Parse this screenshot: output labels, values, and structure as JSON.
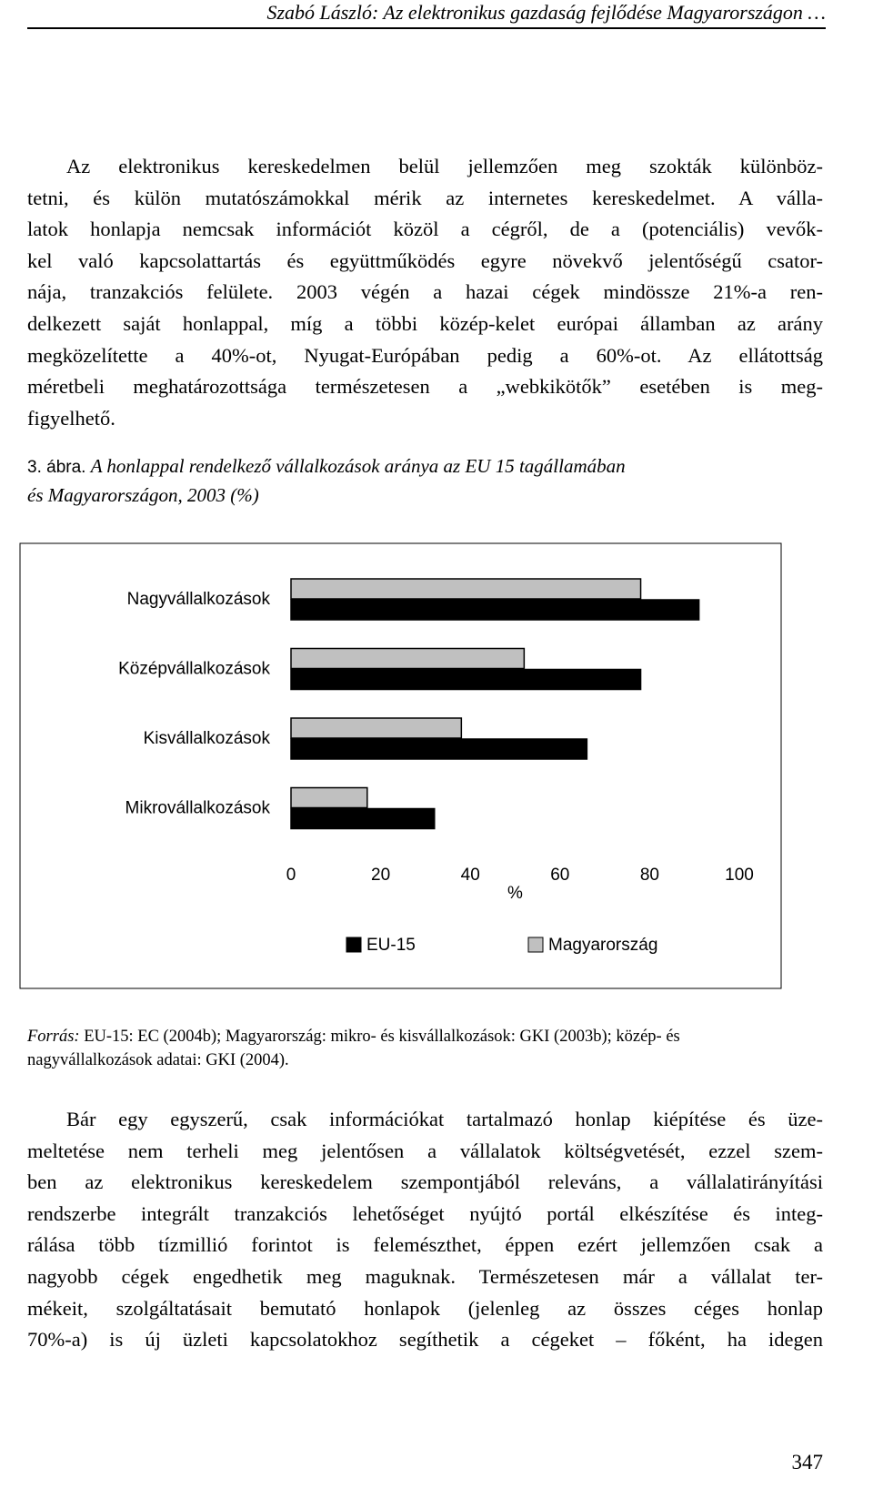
{
  "header": {
    "title": "Szabó László: Az elektronikus gazdaság fejlődése Magyarországon …"
  },
  "paragraph1": {
    "lines": [
      "Az elektronikus kereskedelmen belül jellemzően meg szokták különböz-",
      "tetni, és külön mutatószámokkal mérik az internetes kereskedelmet. A válla-",
      "latok honlapja nemcsak információt közöl a cégről, de a (potenciális) vevők-",
      "kel való kapcsolattartás és együttműködés egyre növekvő jelentőségű csator-",
      "nája, tranzakciós felülete. 2003 végén a hazai cégek mindössze 21%-a ren-",
      "delkezett saját honlappal, míg a többi közép-kelet európai államban az arány",
      "megközelítette a 40%-ot, Nyugat-Európában pedig a 60%-ot. Az ellátottság",
      "méretbeli meghatározottsága természetesen a „webkikötők” esetében is meg-",
      "figyelhető."
    ]
  },
  "caption": {
    "label": "3. ábra.",
    "lines": [
      "A honlappal rendelkező vállalkozások aránya az EU 15 tagállamában",
      "és Magyarországon, 2003 (%)"
    ]
  },
  "chart_data": {
    "type": "barh",
    "categories": [
      "Nagyvállalkozások",
      "Középvállalkozások",
      "Kisvállalkozások",
      "Mikrovállalkozások"
    ],
    "series": [
      {
        "name": "EU-15",
        "color": "#000000",
        "values": [
          91,
          78,
          66,
          32
        ]
      },
      {
        "name": "Magyarország",
        "color": "#c0c0c0",
        "values": [
          78,
          52,
          38,
          17
        ]
      }
    ],
    "x_label": "%",
    "xlim": [
      0,
      100
    ],
    "xticks": [
      0,
      20,
      40,
      60,
      80,
      100
    ],
    "legend": "bottom"
  },
  "source": {
    "label": "Forrás:",
    "lines": [
      "EU-15: EC (2004b); Magyarország: mikro- és kisvállalkozások: GKI (2003b); közép- és",
      "nagyvállalkozások adatai: GKI (2004)."
    ]
  },
  "paragraph2": {
    "lines": [
      "Bár egy egyszerű, csak információkat tartalmazó honlap kiépítése és üze-",
      "meltetése nem terheli meg jelentősen a vállalatok költségvetését, ezzel szem-",
      "ben az elektronikus kereskedelem szempontjából releváns, a vállalatirányítási",
      "rendszerbe integrált tranzakciós lehetőséget nyújtó portál elkészítése és integ-",
      "rálása több tízmillió forintot is felemészthet, éppen ezért jellemzően csak a",
      "nagyobb cégek engedhetik meg maguknak. Természetesen már a vállalat ter-",
      "mékeit, szolgáltatásait bemutató honlapok (jelenleg az összes céges honlap",
      "70%-a) is új üzleti kapcsolatokhoz segíthetik a cégeket – főként, ha idegen"
    ]
  },
  "page_number": "347"
}
